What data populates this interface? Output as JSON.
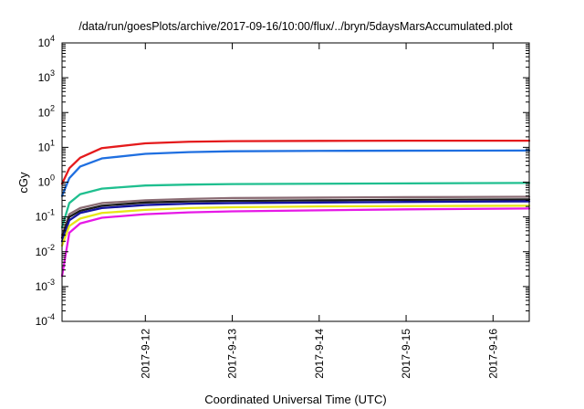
{
  "chart_data": {
    "type": "line",
    "title": "/data/run/goesPlots/archive/2017-09-16/10:00/flux/../bryn/5daysMarsAccumulated.plot",
    "xlabel": "Coordinated Universal Time (UTC)",
    "ylabel": "cGy",
    "yscale": "log",
    "ylim": [
      0.0001,
      10000
    ],
    "xlim": [
      "2017-09-11 01:00",
      "2017-09-16 10:00"
    ],
    "x_tick_labels": [
      "2017-9-12",
      "2017-9-13",
      "2017-9-14",
      "2017-9-15",
      "2017-9-16"
    ],
    "y_tick_labels": [
      {
        "base": "10",
        "exp": "-4"
      },
      {
        "base": "10",
        "exp": "-3"
      },
      {
        "base": "10",
        "exp": "-2"
      },
      {
        "base": "10",
        "exp": "-1"
      },
      {
        "base": "10",
        "exp": "0"
      },
      {
        "base": "10",
        "exp": "1"
      },
      {
        "base": "10",
        "exp": "2"
      },
      {
        "base": "10",
        "exp": "3"
      },
      {
        "base": "10",
        "exp": "4"
      }
    ],
    "grid": false,
    "legend": "none",
    "series": [
      {
        "color": "#e41a1c",
        "x": [
          "2017-09-11 01:00",
          "2017-09-11 03:00",
          "2017-09-11 06:00",
          "2017-09-11 12:00",
          "2017-09-12 00:00",
          "2017-09-12 12:00",
          "2017-09-13 00:00",
          "2017-09-14 00:00",
          "2017-09-15 00:00",
          "2017-09-16 10:00"
        ],
        "y": [
          0.9,
          2.5,
          5,
          9.5,
          13,
          14.5,
          15,
          15.3,
          15.5,
          15.5
        ]
      },
      {
        "color": "#1f6fe0",
        "x": [
          "2017-09-11 01:00",
          "2017-09-11 03:00",
          "2017-09-11 06:00",
          "2017-09-11 12:00",
          "2017-09-12 00:00",
          "2017-09-12 12:00",
          "2017-09-13 00:00",
          "2017-09-14 00:00",
          "2017-09-15 00:00",
          "2017-09-16 10:00"
        ],
        "y": [
          0.4,
          1.3,
          2.8,
          4.8,
          6.5,
          7.3,
          7.7,
          7.9,
          8,
          8.1
        ]
      },
      {
        "color": "#1fbf8f",
        "x": [
          "2017-09-11 01:00",
          "2017-09-11 03:00",
          "2017-09-11 06:00",
          "2017-09-11 12:00",
          "2017-09-12 00:00",
          "2017-09-12 12:00",
          "2017-09-13 00:00",
          "2017-09-14 00:00",
          "2017-09-15 00:00",
          "2017-09-16 10:00"
        ],
        "y": [
          0.05,
          0.25,
          0.45,
          0.65,
          0.8,
          0.85,
          0.88,
          0.9,
          0.92,
          0.95
        ]
      },
      {
        "color": "#8b6c74",
        "x": [
          "2017-09-11 01:00",
          "2017-09-11 03:00",
          "2017-09-11 06:00",
          "2017-09-11 12:00",
          "2017-09-12 00:00",
          "2017-09-12 12:00",
          "2017-09-13 00:00",
          "2017-09-14 00:00",
          "2017-09-15 00:00",
          "2017-09-16 10:00"
        ],
        "y": [
          0.03,
          0.12,
          0.18,
          0.25,
          0.3,
          0.33,
          0.35,
          0.36,
          0.37,
          0.38
        ]
      },
      {
        "color": "#1a1a1a",
        "x": [
          "2017-09-11 01:00",
          "2017-09-11 03:00",
          "2017-09-11 06:00",
          "2017-09-11 12:00",
          "2017-09-12 00:00",
          "2017-09-12 12:00",
          "2017-09-13 00:00",
          "2017-09-14 00:00",
          "2017-09-15 00:00",
          "2017-09-16 10:00"
        ],
        "y": [
          0.025,
          0.1,
          0.15,
          0.21,
          0.26,
          0.28,
          0.29,
          0.3,
          0.31,
          0.32
        ]
      },
      {
        "color": "#1414a0",
        "x": [
          "2017-09-11 01:00",
          "2017-09-11 03:00",
          "2017-09-11 06:00",
          "2017-09-11 12:00",
          "2017-09-12 00:00",
          "2017-09-12 12:00",
          "2017-09-13 00:00",
          "2017-09-14 00:00",
          "2017-09-15 00:00",
          "2017-09-16 10:00"
        ],
        "y": [
          0.02,
          0.08,
          0.13,
          0.18,
          0.22,
          0.24,
          0.25,
          0.26,
          0.27,
          0.28
        ]
      },
      {
        "color": "#e6e617",
        "x": [
          "2017-09-11 01:00",
          "2017-09-11 03:00",
          "2017-09-11 06:00",
          "2017-09-11 12:00",
          "2017-09-12 00:00",
          "2017-09-12 12:00",
          "2017-09-13 00:00",
          "2017-09-14 00:00",
          "2017-09-15 00:00",
          "2017-09-16 10:00"
        ],
        "y": [
          0.015,
          0.055,
          0.09,
          0.13,
          0.16,
          0.18,
          0.19,
          0.2,
          0.205,
          0.21
        ]
      },
      {
        "color": "#e619e6",
        "x": [
          "2017-09-11 01:00",
          "2017-09-11 03:00",
          "2017-09-11 06:00",
          "2017-09-11 12:00",
          "2017-09-12 00:00",
          "2017-09-12 12:00",
          "2017-09-13 00:00",
          "2017-09-14 00:00",
          "2017-09-15 00:00",
          "2017-09-16 10:00"
        ],
        "y": [
          0.002,
          0.035,
          0.065,
          0.095,
          0.12,
          0.135,
          0.145,
          0.155,
          0.165,
          0.175
        ]
      }
    ]
  }
}
